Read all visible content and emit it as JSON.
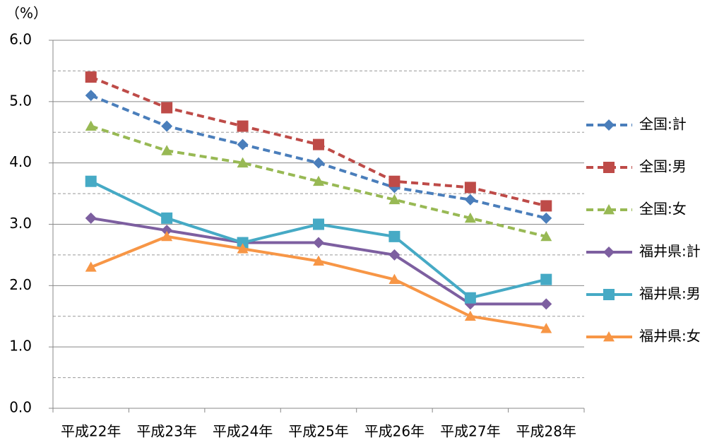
{
  "chart_data": {
    "type": "line",
    "y_unit": "（%）",
    "categories": [
      "平成22年",
      "平成23年",
      "平成24年",
      "平成25年",
      "平成26年",
      "平成27年",
      "平成28年"
    ],
    "series": [
      {
        "name": "全国:計",
        "color": "#4a7ebb",
        "dashed": true,
        "marker": "diamond",
        "values": [
          5.1,
          4.6,
          4.3,
          4.0,
          3.6,
          3.4,
          3.1
        ]
      },
      {
        "name": "全国:男",
        "color": "#be4b48",
        "dashed": true,
        "marker": "square",
        "values": [
          5.4,
          4.9,
          4.6,
          4.3,
          3.7,
          3.6,
          3.3
        ]
      },
      {
        "name": "全国:女",
        "color": "#98b954",
        "dashed": true,
        "marker": "triangle",
        "values": [
          4.6,
          4.2,
          4.0,
          3.7,
          3.4,
          3.1,
          2.8
        ]
      },
      {
        "name": "福井県:計",
        "color": "#7d5fa0",
        "dashed": false,
        "marker": "diamond",
        "values": [
          3.1,
          2.9,
          2.7,
          2.7,
          2.5,
          1.7,
          1.7
        ]
      },
      {
        "name": "福井県:男",
        "color": "#46aac5",
        "dashed": false,
        "marker": "square",
        "values": [
          3.7,
          3.1,
          2.7,
          3.0,
          2.8,
          1.8,
          2.1
        ]
      },
      {
        "name": "福井県:女",
        "color": "#f79646",
        "dashed": false,
        "marker": "triangle",
        "values": [
          2.3,
          2.8,
          2.6,
          2.4,
          2.1,
          1.5,
          1.3
        ]
      }
    ],
    "ylim": [
      0,
      6
    ],
    "yticks": [
      {
        "value": 0,
        "label": "0.0"
      },
      {
        "value": 1,
        "label": "1.0"
      },
      {
        "value": 2,
        "label": "2.0"
      },
      {
        "value": 3,
        "label": "3.0"
      },
      {
        "value": 4,
        "label": "4.0"
      },
      {
        "value": 5,
        "label": "5.0"
      },
      {
        "value": 6,
        "label": "6.0"
      }
    ],
    "minor_yticks": [
      0.5,
      1.5,
      2.5,
      3.5,
      4.5,
      5.5
    ],
    "grid": true,
    "legend": "right"
  }
}
